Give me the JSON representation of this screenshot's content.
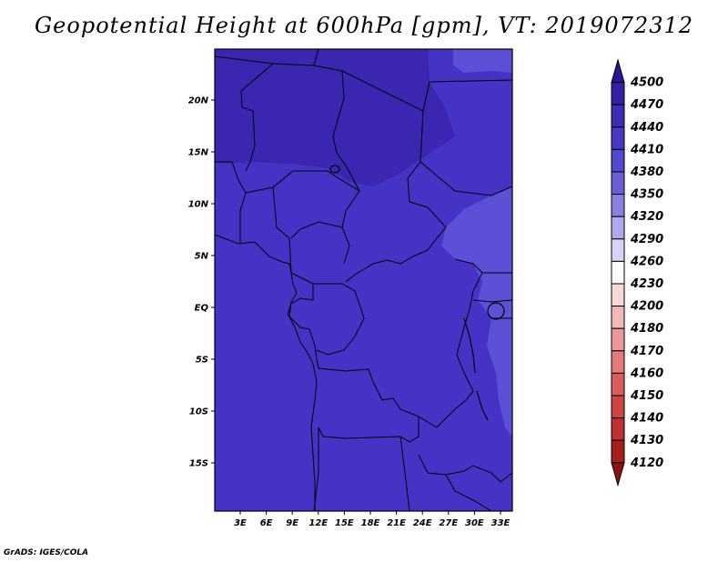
{
  "title": "Geopotential Height at 600hPa [gpm], VT: 2019072312",
  "credit": "GrADS: IGES/COLA",
  "map": {
    "lat_labels": [
      "20N",
      "15N",
      "10N",
      "5N",
      "EQ",
      "5S",
      "10S",
      "15S"
    ],
    "lon_labels": [
      "3E",
      "6E",
      "9E",
      "12E",
      "15E",
      "18E",
      "21E",
      "24E",
      "27E",
      "30E",
      "33E"
    ],
    "base_fill": "#4433c4",
    "high_fill": "#3a26b0",
    "low_fill": "#5b50d6",
    "outline_color": "#000000"
  },
  "colorbar": {
    "levels": [
      "4500",
      "4470",
      "4440",
      "4410",
      "4380",
      "4350",
      "4320",
      "4290",
      "4260",
      "4230",
      "4200",
      "4180",
      "4170",
      "4160",
      "4150",
      "4140",
      "4130",
      "4120"
    ],
    "colors": [
      "#2a1696",
      "#3320a6",
      "#3e2cb6",
      "#4838c4",
      "#5548d0",
      "#6a5ed8",
      "#8a80e2",
      "#b0a8ee",
      "#d8d4f6",
      "#ffffff",
      "#f8d8d8",
      "#f2b8b8",
      "#ec9898",
      "#e47a7a",
      "#dc5c5c",
      "#d04444",
      "#c03030",
      "#a81e1e",
      "#8a1212"
    ]
  }
}
